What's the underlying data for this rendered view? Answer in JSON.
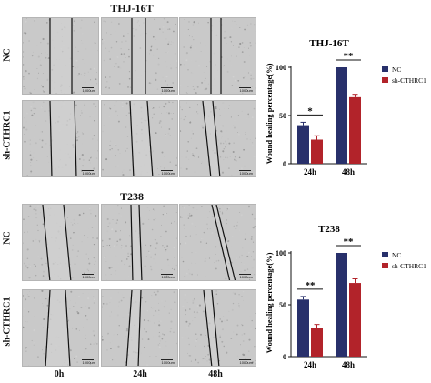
{
  "panel_a": {
    "title": "THJ-16T",
    "row_labels": [
      "NC",
      "sh-CTHRC1"
    ],
    "scale_text": "1000um"
  },
  "panel_b": {
    "title": "T238",
    "row_labels": [
      "NC",
      "sh-CTHRC1"
    ],
    "scale_text": "1000um"
  },
  "column_labels": [
    "0h",
    "24h",
    "48h"
  ],
  "colors": {
    "nc": "#28306b",
    "sh": "#b2232a",
    "micro_bg": "#c9c9c9"
  },
  "chart_data": [
    {
      "type": "bar",
      "title": "THJ-16T",
      "ylabel": "Wound healing percentage(%)",
      "xlabel": "",
      "categories": [
        "24h",
        "48h"
      ],
      "ylim": [
        0,
        100
      ],
      "yticks": [
        0,
        50,
        100
      ],
      "series": [
        {
          "name": "NC",
          "values": [
            40,
            100
          ],
          "errors": [
            3,
            0
          ]
        },
        {
          "name": "sh-CTHRC1",
          "values": [
            25,
            69
          ],
          "errors": [
            4,
            3
          ]
        }
      ],
      "significance": [
        "*",
        "**"
      ],
      "legend": "top-right",
      "grid": false
    },
    {
      "type": "bar",
      "title": "T238",
      "ylabel": "Wound healing percentage(%)",
      "xlabel": "",
      "categories": [
        "24h",
        "48h"
      ],
      "ylim": [
        0,
        100
      ],
      "yticks": [
        0,
        50,
        100
      ],
      "series": [
        {
          "name": "NC",
          "values": [
            55,
            100
          ],
          "errors": [
            3,
            0
          ]
        },
        {
          "name": "sh-CTHRC1",
          "values": [
            28,
            71
          ],
          "errors": [
            3,
            4
          ]
        }
      ],
      "significance": [
        "**",
        "**"
      ],
      "legend": "top-right",
      "grid": false
    }
  ]
}
